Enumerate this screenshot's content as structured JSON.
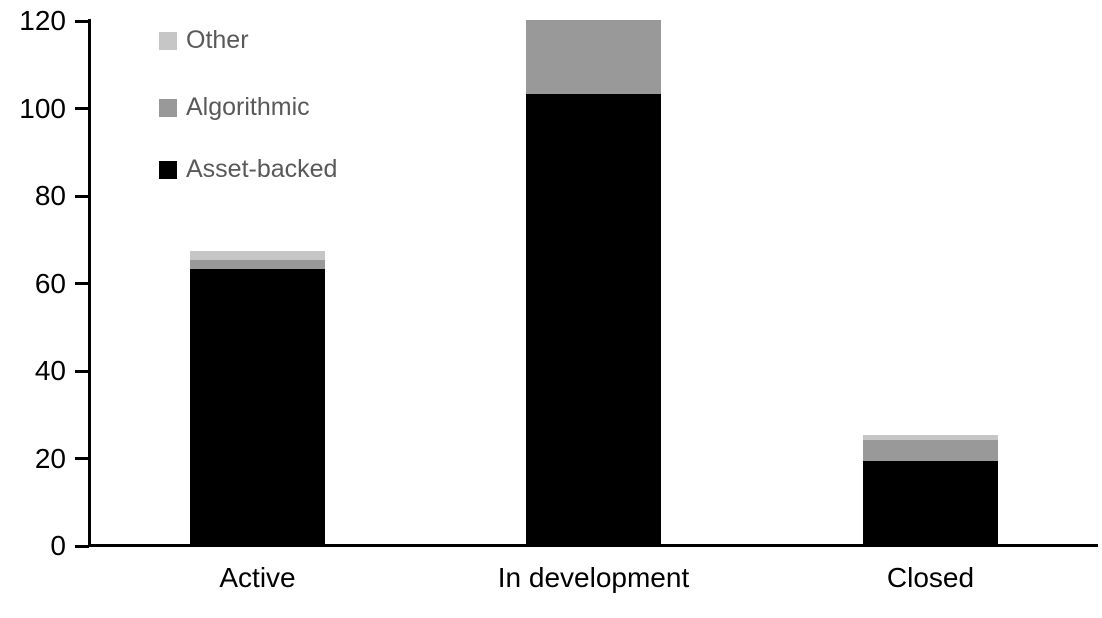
{
  "chart_data": {
    "type": "bar",
    "stacked": true,
    "title": "",
    "xlabel": "",
    "ylabel": "",
    "categories": [
      "Active",
      "In development",
      "Closed"
    ],
    "series": [
      {
        "name": "Asset-backed",
        "color": "#000000",
        "values": [
          63,
          103,
          19
        ]
      },
      {
        "name": "Algorithmic",
        "color": "#999999",
        "values": [
          2,
          17,
          5
        ]
      },
      {
        "name": "Other",
        "color": "#c6c6c6",
        "values": [
          2,
          0,
          1
        ]
      }
    ],
    "totals": [
      67,
      120,
      25
    ],
    "yticks": [
      0,
      20,
      40,
      60,
      80,
      100,
      120
    ],
    "ylim": [
      0,
      120
    ],
    "grid": false,
    "legend_position": "top-left",
    "legend_order": [
      "Other",
      "Algorithmic",
      "Asset-backed"
    ],
    "axis_color": "#000000",
    "tick_label_color": "#000000",
    "legend_text_color": "#595959",
    "background_color": "#ffffff"
  }
}
